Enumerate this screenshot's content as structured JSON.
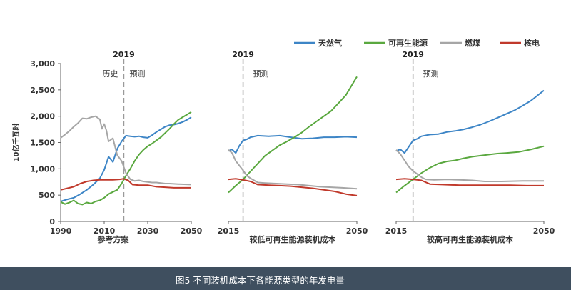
{
  "caption": "图5 不同装机成本下各能源类型的年发电量",
  "chart_data": [
    {
      "type": "line",
      "subtitle": "参考方案",
      "ylabel": "10亿千瓦时",
      "xlim": [
        1990,
        2050
      ],
      "ylim": [
        0,
        3000
      ],
      "x_ticks": [
        "1990",
        "2010",
        "2030",
        "2050"
      ],
      "y_ticks": [
        "0",
        "500",
        "1,000",
        "1,500",
        "2,000",
        "2,500",
        "3,000"
      ],
      "marker_year": "2019",
      "marker_x": 2019,
      "region_labels": [
        "历史",
        "预测"
      ],
      "series": [
        {
          "name": "天然气",
          "color": "#3d85c6",
          "points": [
            [
              1990,
              380
            ],
            [
              1993,
              420
            ],
            [
              1996,
              450
            ],
            [
              1999,
              520
            ],
            [
              2002,
              600
            ],
            [
              2005,
              700
            ],
            [
              2008,
              820
            ],
            [
              2010,
              980
            ],
            [
              2012,
              1230
            ],
            [
              2014,
              1130
            ],
            [
              2016,
              1380
            ],
            [
              2018,
              1520
            ],
            [
              2020,
              1630
            ],
            [
              2022,
              1620
            ],
            [
              2024,
              1610
            ],
            [
              2026,
              1620
            ],
            [
              2028,
              1600
            ],
            [
              2030,
              1590
            ],
            [
              2032,
              1640
            ],
            [
              2034,
              1700
            ],
            [
              2036,
              1750
            ],
            [
              2038,
              1800
            ],
            [
              2040,
              1830
            ],
            [
              2042,
              1840
            ],
            [
              2044,
              1860
            ],
            [
              2046,
              1890
            ],
            [
              2048,
              1930
            ],
            [
              2050,
              1980
            ]
          ]
        },
        {
          "name": "可再生能源",
          "color": "#5aa83f",
          "points": [
            [
              1990,
              370
            ],
            [
              1992,
              330
            ],
            [
              1994,
              360
            ],
            [
              1996,
              400
            ],
            [
              1998,
              340
            ],
            [
              2000,
              320
            ],
            [
              2002,
              360
            ],
            [
              2004,
              340
            ],
            [
              2006,
              380
            ],
            [
              2008,
              400
            ],
            [
              2010,
              450
            ],
            [
              2012,
              520
            ],
            [
              2014,
              560
            ],
            [
              2016,
              600
            ],
            [
              2018,
              720
            ],
            [
              2020,
              870
            ],
            [
              2022,
              1000
            ],
            [
              2024,
              1150
            ],
            [
              2026,
              1270
            ],
            [
              2028,
              1360
            ],
            [
              2030,
              1430
            ],
            [
              2032,
              1480
            ],
            [
              2034,
              1540
            ],
            [
              2036,
              1600
            ],
            [
              2038,
              1680
            ],
            [
              2040,
              1760
            ],
            [
              2042,
              1850
            ],
            [
              2044,
              1930
            ],
            [
              2046,
              1980
            ],
            [
              2048,
              2030
            ],
            [
              2050,
              2080
            ]
          ]
        },
        {
          "name": "燃煤",
          "color": "#a6a6a6",
          "points": [
            [
              1990,
              1590
            ],
            [
              1992,
              1650
            ],
            [
              1994,
              1720
            ],
            [
              1996,
              1800
            ],
            [
              1998,
              1870
            ],
            [
              2000,
              1960
            ],
            [
              2002,
              1950
            ],
            [
              2004,
              1980
            ],
            [
              2006,
              2000
            ],
            [
              2008,
              1940
            ],
            [
              2009,
              1760
            ],
            [
              2010,
              1850
            ],
            [
              2011,
              1730
            ],
            [
              2012,
              1520
            ],
            [
              2014,
              1580
            ],
            [
              2016,
              1260
            ],
            [
              2018,
              1150
            ],
            [
              2020,
              920
            ],
            [
              2022,
              800
            ],
            [
              2024,
              770
            ],
            [
              2026,
              780
            ],
            [
              2028,
              760
            ],
            [
              2030,
              750
            ],
            [
              2032,
              740
            ],
            [
              2034,
              740
            ],
            [
              2036,
              730
            ],
            [
              2038,
              720
            ],
            [
              2040,
              720
            ],
            [
              2044,
              710
            ],
            [
              2050,
              700
            ]
          ]
        },
        {
          "name": "核电",
          "color": "#c0392b",
          "points": [
            [
              1990,
              600
            ],
            [
              1993,
              630
            ],
            [
              1996,
              660
            ],
            [
              1999,
              720
            ],
            [
              2002,
              760
            ],
            [
              2005,
              780
            ],
            [
              2008,
              790
            ],
            [
              2011,
              790
            ],
            [
              2014,
              790
            ],
            [
              2017,
              800
            ],
            [
              2019,
              810
            ],
            [
              2021,
              780
            ],
            [
              2023,
              700
            ],
            [
              2026,
              690
            ],
            [
              2030,
              690
            ],
            [
              2034,
              660
            ],
            [
              2038,
              650
            ],
            [
              2042,
              640
            ],
            [
              2046,
              640
            ],
            [
              2050,
              640
            ]
          ]
        }
      ]
    },
    {
      "type": "line",
      "subtitle": "较低可再生能源装机成本",
      "xlim": [
        2015,
        2050
      ],
      "ylim": [
        0,
        3000
      ],
      "x_ticks": [
        "2015",
        "2050"
      ],
      "marker_year": "2019",
      "marker_x": 2019,
      "region_labels": [
        "预测"
      ],
      "series": [
        {
          "name": "天然气",
          "color": "#3d85c6",
          "points": [
            [
              2015,
              1340
            ],
            [
              2016,
              1370
            ],
            [
              2017,
              1300
            ],
            [
              2018,
              1440
            ],
            [
              2019,
              1540
            ],
            [
              2020,
              1560
            ],
            [
              2021,
              1600
            ],
            [
              2023,
              1630
            ],
            [
              2026,
              1620
            ],
            [
              2029,
              1630
            ],
            [
              2032,
              1600
            ],
            [
              2035,
              1570
            ],
            [
              2038,
              1580
            ],
            [
              2041,
              1600
            ],
            [
              2044,
              1600
            ],
            [
              2047,
              1610
            ],
            [
              2050,
              1600
            ]
          ]
        },
        {
          "name": "可再生能源",
          "color": "#5aa83f",
          "points": [
            [
              2015,
              550
            ],
            [
              2017,
              680
            ],
            [
              2019,
              800
            ],
            [
              2021,
              950
            ],
            [
              2023,
              1100
            ],
            [
              2025,
              1250
            ],
            [
              2027,
              1350
            ],
            [
              2029,
              1450
            ],
            [
              2031,
              1520
            ],
            [
              2033,
              1600
            ],
            [
              2035,
              1690
            ],
            [
              2037,
              1800
            ],
            [
              2039,
              1900
            ],
            [
              2041,
              2000
            ],
            [
              2043,
              2100
            ],
            [
              2045,
              2250
            ],
            [
              2047,
              2400
            ],
            [
              2050,
              2750
            ]
          ]
        },
        {
          "name": "燃煤",
          "color": "#a6a6a6",
          "points": [
            [
              2015,
              1360
            ],
            [
              2016,
              1300
            ],
            [
              2017,
              1150
            ],
            [
              2018,
              1060
            ],
            [
              2019,
              970
            ],
            [
              2020,
              870
            ],
            [
              2021,
              820
            ],
            [
              2022,
              780
            ],
            [
              2023,
              740
            ],
            [
              2025,
              730
            ],
            [
              2028,
              720
            ],
            [
              2031,
              710
            ],
            [
              2034,
              700
            ],
            [
              2037,
              680
            ],
            [
              2040,
              660
            ],
            [
              2043,
              650
            ],
            [
              2046,
              640
            ],
            [
              2050,
              620
            ]
          ]
        },
        {
          "name": "核电",
          "color": "#c0392b",
          "points": [
            [
              2015,
              800
            ],
            [
              2017,
              810
            ],
            [
              2019,
              790
            ],
            [
              2021,
              760
            ],
            [
              2023,
              700
            ],
            [
              2026,
              690
            ],
            [
              2029,
              680
            ],
            [
              2032,
              670
            ],
            [
              2035,
              650
            ],
            [
              2038,
              630
            ],
            [
              2041,
              600
            ],
            [
              2044,
              570
            ],
            [
              2047,
              520
            ],
            [
              2050,
              490
            ]
          ]
        }
      ]
    },
    {
      "type": "line",
      "subtitle": "较高可再生能源装机成本",
      "xlim": [
        2015,
        2050
      ],
      "ylim": [
        0,
        3000
      ],
      "x_ticks": [
        "2015",
        "2050"
      ],
      "marker_year": "2019",
      "marker_x": 2019,
      "region_labels": [
        "预测"
      ],
      "series": [
        {
          "name": "天然气",
          "color": "#3d85c6",
          "points": [
            [
              2015,
              1340
            ],
            [
              2016,
              1370
            ],
            [
              2017,
              1300
            ],
            [
              2018,
              1420
            ],
            [
              2019,
              1540
            ],
            [
              2020,
              1570
            ],
            [
              2021,
              1620
            ],
            [
              2023,
              1650
            ],
            [
              2025,
              1660
            ],
            [
              2027,
              1700
            ],
            [
              2029,
              1720
            ],
            [
              2031,
              1750
            ],
            [
              2033,
              1790
            ],
            [
              2035,
              1840
            ],
            [
              2037,
              1900
            ],
            [
              2039,
              1970
            ],
            [
              2041,
              2040
            ],
            [
              2043,
              2110
            ],
            [
              2045,
              2200
            ],
            [
              2047,
              2300
            ],
            [
              2050,
              2490
            ]
          ]
        },
        {
          "name": "可再生能源",
          "color": "#5aa83f",
          "points": [
            [
              2015,
              550
            ],
            [
              2017,
              680
            ],
            [
              2019,
              800
            ],
            [
              2021,
              920
            ],
            [
              2023,
              1020
            ],
            [
              2025,
              1100
            ],
            [
              2027,
              1140
            ],
            [
              2029,
              1160
            ],
            [
              2031,
              1200
            ],
            [
              2033,
              1230
            ],
            [
              2035,
              1250
            ],
            [
              2037,
              1270
            ],
            [
              2039,
              1290
            ],
            [
              2041,
              1300
            ],
            [
              2044,
              1320
            ],
            [
              2047,
              1370
            ],
            [
              2050,
              1430
            ]
          ]
        },
        {
          "name": "燃煤",
          "color": "#a6a6a6",
          "points": [
            [
              2015,
              1360
            ],
            [
              2016,
              1280
            ],
            [
              2017,
              1160
            ],
            [
              2018,
              1040
            ],
            [
              2019,
              960
            ],
            [
              2020,
              900
            ],
            [
              2021,
              840
            ],
            [
              2022,
              800
            ],
            [
              2024,
              790
            ],
            [
              2027,
              800
            ],
            [
              2030,
              790
            ],
            [
              2033,
              780
            ],
            [
              2036,
              760
            ],
            [
              2040,
              760
            ],
            [
              2045,
              770
            ],
            [
              2050,
              770
            ]
          ]
        },
        {
          "name": "核电",
          "color": "#c0392b",
          "points": [
            [
              2015,
              800
            ],
            [
              2017,
              810
            ],
            [
              2019,
              800
            ],
            [
              2021,
              780
            ],
            [
              2023,
              710
            ],
            [
              2026,
              700
            ],
            [
              2030,
              690
            ],
            [
              2034,
              690
            ],
            [
              2038,
              690
            ],
            [
              2042,
              690
            ],
            [
              2046,
              680
            ],
            [
              2050,
              680
            ]
          ]
        }
      ]
    }
  ]
}
